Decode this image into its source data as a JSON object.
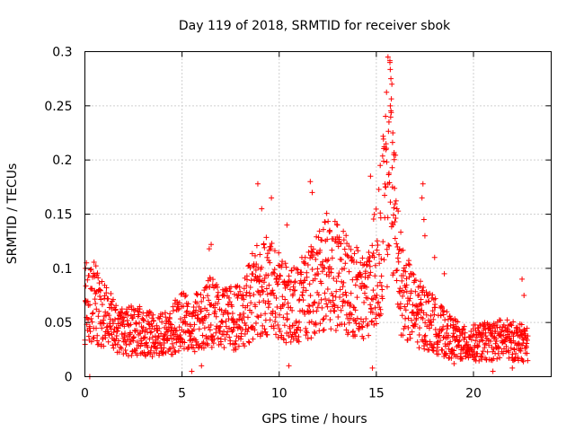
{
  "chart_data": {
    "type": "scatter",
    "title": "Day 119 of 2018, SRMTID for receiver sbok",
    "xlabel": "GPS time / hours",
    "ylabel": "SRMTID / TECUs",
    "xlim": [
      0,
      24
    ],
    "ylim": [
      0,
      0.3
    ],
    "x_ticks": [
      0,
      5,
      10,
      15,
      20
    ],
    "y_ticks": [
      0,
      0.05,
      0.1,
      0.15,
      0.2,
      0.25,
      0.3
    ],
    "x_tick_labels": [
      "0",
      "5",
      "10",
      "15",
      "20"
    ],
    "y_tick_labels": [
      "0",
      "0.05",
      "0.1",
      "0.15",
      "0.2",
      "0.25",
      "0.3"
    ],
    "grid": true,
    "marker": "+",
    "color": "#ff0000",
    "series": [
      {
        "name": "SRMTID",
        "profile": [
          {
            "x": 0.0,
            "y": 0.055
          },
          {
            "x": 0.5,
            "y": 0.07
          },
          {
            "x": 1.0,
            "y": 0.055
          },
          {
            "x": 2.0,
            "y": 0.043
          },
          {
            "x": 3.0,
            "y": 0.042
          },
          {
            "x": 4.0,
            "y": 0.038
          },
          {
            "x": 5.0,
            "y": 0.05
          },
          {
            "x": 6.0,
            "y": 0.052
          },
          {
            "x": 6.5,
            "y": 0.06
          },
          {
            "x": 7.0,
            "y": 0.052
          },
          {
            "x": 8.0,
            "y": 0.055
          },
          {
            "x": 8.8,
            "y": 0.08
          },
          {
            "x": 9.5,
            "y": 0.085
          },
          {
            "x": 10.5,
            "y": 0.065
          },
          {
            "x": 11.5,
            "y": 0.075
          },
          {
            "x": 12.5,
            "y": 0.1
          },
          {
            "x": 13.5,
            "y": 0.085
          },
          {
            "x": 14.5,
            "y": 0.07
          },
          {
            "x": 15.2,
            "y": 0.12
          },
          {
            "x": 15.7,
            "y": 0.2
          },
          {
            "x": 16.3,
            "y": 0.08
          },
          {
            "x": 17.0,
            "y": 0.06
          },
          {
            "x": 17.5,
            "y": 0.055
          },
          {
            "x": 18.5,
            "y": 0.04
          },
          {
            "x": 19.5,
            "y": 0.03
          },
          {
            "x": 20.5,
            "y": 0.032
          },
          {
            "x": 21.5,
            "y": 0.035
          },
          {
            "x": 22.8,
            "y": 0.03
          }
        ],
        "points": [
          {
            "x": 0.03,
            "y": 0.1
          },
          {
            "x": 0.08,
            "y": 0.105
          },
          {
            "x": 0.25,
            "y": 0.0
          },
          {
            "x": 6.5,
            "y": 0.122
          },
          {
            "x": 6.4,
            "y": 0.118
          },
          {
            "x": 8.9,
            "y": 0.178
          },
          {
            "x": 9.1,
            "y": 0.155
          },
          {
            "x": 9.6,
            "y": 0.165
          },
          {
            "x": 10.4,
            "y": 0.14
          },
          {
            "x": 11.6,
            "y": 0.18
          },
          {
            "x": 11.7,
            "y": 0.17
          },
          {
            "x": 12.6,
            "y": 0.135
          },
          {
            "x": 13.0,
            "y": 0.14
          },
          {
            "x": 14.7,
            "y": 0.185
          },
          {
            "x": 14.8,
            "y": 0.008
          },
          {
            "x": 15.2,
            "y": 0.195
          },
          {
            "x": 15.6,
            "y": 0.295
          },
          {
            "x": 15.7,
            "y": 0.29
          },
          {
            "x": 15.75,
            "y": 0.275
          },
          {
            "x": 15.8,
            "y": 0.27
          },
          {
            "x": 15.72,
            "y": 0.25
          },
          {
            "x": 15.65,
            "y": 0.235
          },
          {
            "x": 15.85,
            "y": 0.225
          },
          {
            "x": 15.5,
            "y": 0.215
          },
          {
            "x": 15.9,
            "y": 0.205
          },
          {
            "x": 17.4,
            "y": 0.178
          },
          {
            "x": 17.35,
            "y": 0.165
          },
          {
            "x": 17.45,
            "y": 0.145
          },
          {
            "x": 17.5,
            "y": 0.13
          },
          {
            "x": 18.0,
            "y": 0.11
          },
          {
            "x": 18.5,
            "y": 0.095
          },
          {
            "x": 22.5,
            "y": 0.09
          },
          {
            "x": 22.6,
            "y": 0.075
          },
          {
            "x": 5.5,
            "y": 0.005
          },
          {
            "x": 6.0,
            "y": 0.01
          },
          {
            "x": 10.5,
            "y": 0.01
          },
          {
            "x": 19.0,
            "y": 0.012
          },
          {
            "x": 21.0,
            "y": 0.005
          },
          {
            "x": 22.0,
            "y": 0.008
          }
        ]
      }
    ]
  }
}
